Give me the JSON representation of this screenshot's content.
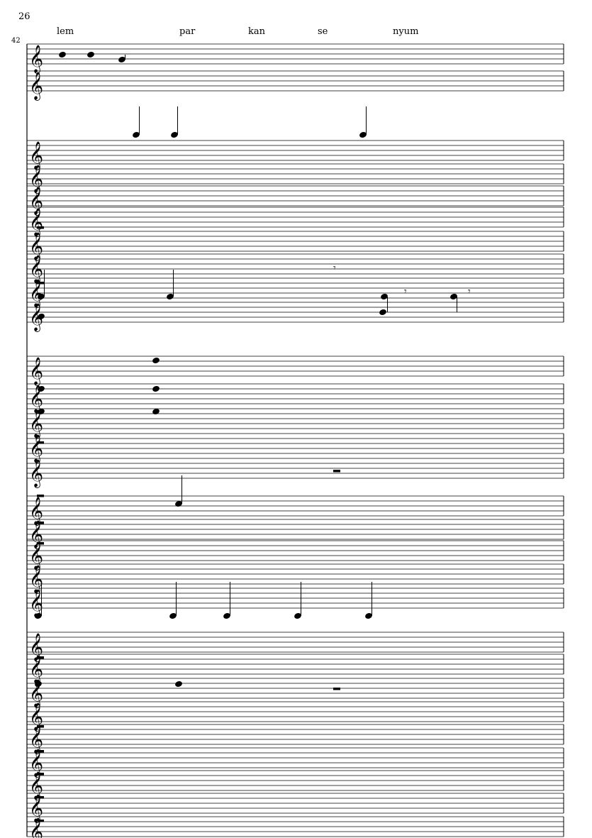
{
  "page_number": "26",
  "measure_number": "42",
  "lyrics": [
    "lem",
    "par",
    "kan",
    "se",
    "nyum"
  ],
  "staff_count": 29,
  "clef": "treble-clef-icon"
}
